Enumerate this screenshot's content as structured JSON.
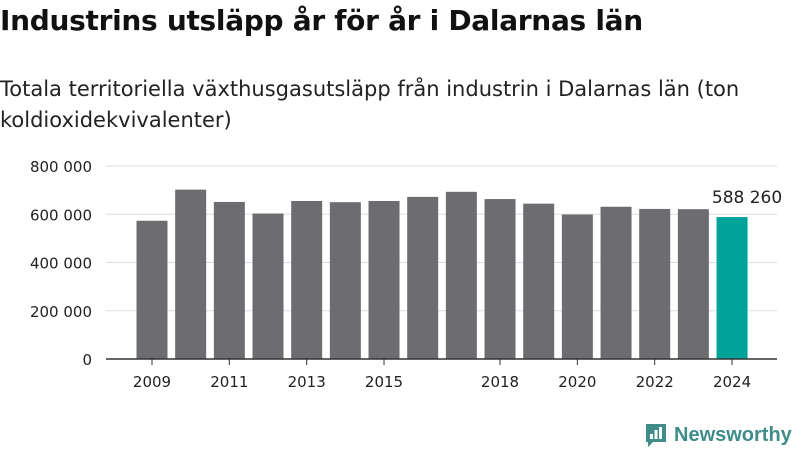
{
  "title": "Industrins utsläpp år för år i Dalarnas län",
  "subtitle": "Totala territoriella växthusgasutsläpp från industrin i Dalarnas län (ton koldioxidekvivalenter)",
  "brand": {
    "name": "Newsworthy",
    "icon": "newsworthy-logo-icon",
    "color": "#3f8c8a"
  },
  "colors": {
    "bar": "#6d6c70",
    "highlight": "#00a39a",
    "grid": "#dddddd",
    "axis": "#333333"
  },
  "chart_data": {
    "type": "bar",
    "categories": [
      2009,
      2010,
      2011,
      2012,
      2013,
      2014,
      2015,
      2016,
      2017,
      2018,
      2019,
      2020,
      2021,
      2022,
      2023,
      2024
    ],
    "values": [
      573000,
      702000,
      651000,
      603000,
      655000,
      650000,
      655000,
      672000,
      693000,
      663000,
      644000,
      599000,
      631000,
      622000,
      621000,
      588260
    ],
    "x_tick_labels": [
      "2009",
      "2011",
      "2013",
      "2015",
      "2018",
      "2020",
      "2022",
      "2024"
    ],
    "y_ticks": [
      0,
      200000,
      400000,
      600000,
      800000
    ],
    "y_tick_labels": [
      "0",
      "200 000",
      "400 000",
      "600 000",
      "800 000"
    ],
    "ylim": [
      0,
      800000
    ],
    "highlight_category": 2024,
    "highlight_label": "588 260",
    "grid": true,
    "xlabel": "",
    "ylabel": ""
  }
}
